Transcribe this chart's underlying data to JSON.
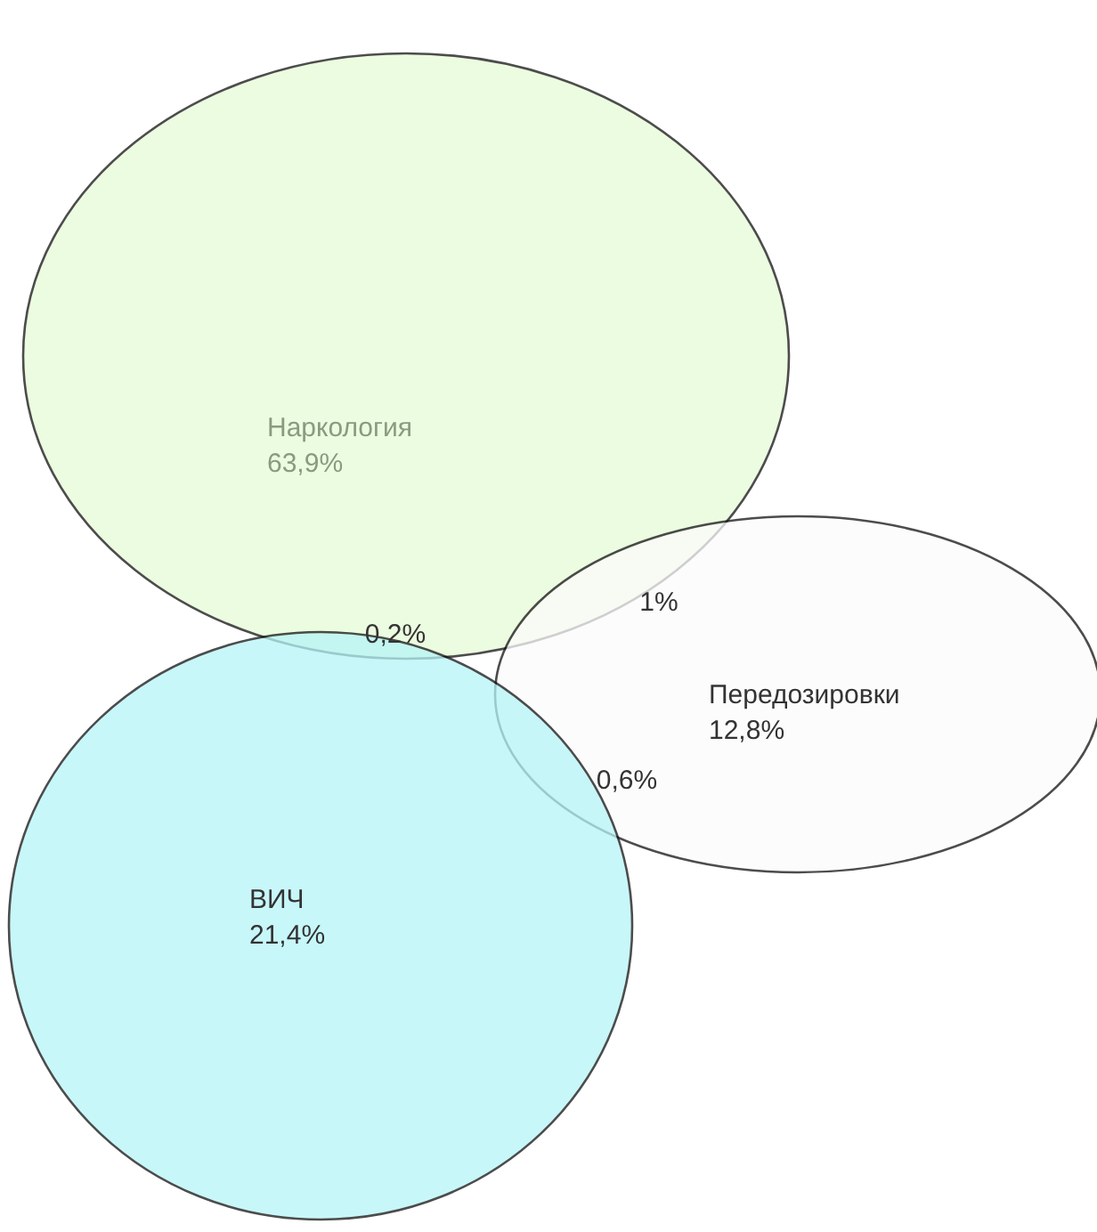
{
  "chart_data": {
    "type": "other",
    "categories": [
      "Наркология",
      "Передозировки",
      "ВИЧ"
    ],
    "values": [
      63.9,
      12.8,
      21.4
    ],
    "value_labels": [
      "63,9%",
      "12,8%",
      "21,4%"
    ],
    "colors": [
      "#e6fbd6",
      "#fbfbfb",
      "#b6f5f7"
    ],
    "annotations": [
      "1%",
      "0,2%",
      "0,6%"
    ]
  }
}
